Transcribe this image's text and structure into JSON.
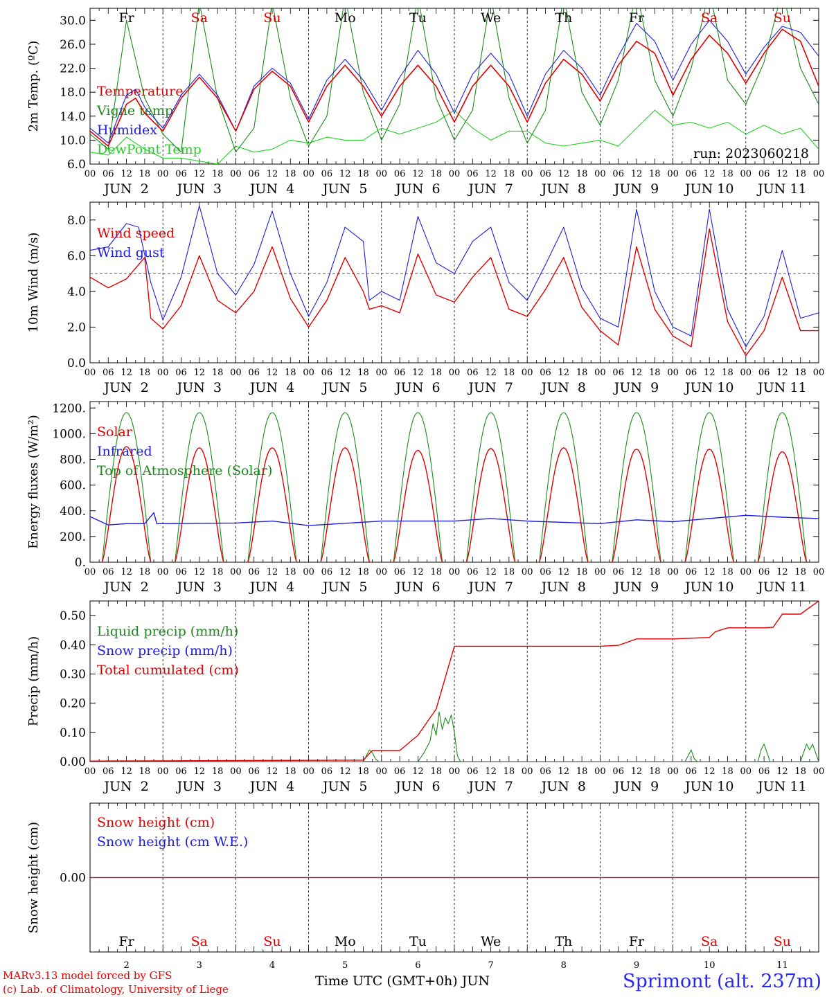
{
  "meta": {
    "run_label": "run: 2023060218",
    "credit_line1": "MARv3.13 model forced by GFS",
    "credit_line2": "(c) Lab. of Climatology, University of Liege",
    "x_axis_title": "Time UTC (GMT+0h) JUN",
    "station": "Sprimont (alt. 237m)"
  },
  "colors": {
    "red": "#e00000",
    "blue": "#1c1ce0",
    "green": "#1a8a1a",
    "lightgreen": "#20d020",
    "purple": "#7030a0"
  },
  "axis": {
    "hour_labels": [
      "00",
      "06",
      "12",
      "18"
    ],
    "day_labels": [
      {
        "text": "JUN  2"
      },
      {
        "text": "JUN  3"
      },
      {
        "text": "JUN  4"
      },
      {
        "text": "JUN  5"
      },
      {
        "text": "JUN  6"
      },
      {
        "text": "JUN  7"
      },
      {
        "text": "JUN  8"
      },
      {
        "text": "JUN  9"
      },
      {
        "text": "JUN 10"
      },
      {
        "text": "JUN 11"
      }
    ],
    "weekdays": [
      {
        "text": "Fr",
        "weekend": false
      },
      {
        "text": "Sa",
        "weekend": true
      },
      {
        "text": "Su",
        "weekend": true
      },
      {
        "text": "Mo",
        "weekend": false
      },
      {
        "text": "Tu",
        "weekend": false
      },
      {
        "text": "We",
        "weekend": false
      },
      {
        "text": "Th",
        "weekend": false
      },
      {
        "text": "Fr",
        "weekend": false
      },
      {
        "text": "Sa",
        "weekend": true
      },
      {
        "text": "Su",
        "weekend": true
      }
    ],
    "day_numbers": [
      "2",
      "3",
      "4",
      "5",
      "6",
      "7",
      "8",
      "9",
      "10",
      "11"
    ]
  },
  "chart_data": [
    {
      "type": "line",
      "id": "temp",
      "ylabel": "2m Temp. (ºC)",
      "ylim": [
        6,
        32
      ],
      "yticks": [
        "6.0",
        "10.0",
        "14.0",
        "18.0",
        "22.0",
        "26.0",
        "30.0"
      ],
      "legend": [
        "Temperature",
        "Vigne temp",
        "Humidex",
        "DewPoint Temp"
      ],
      "x_unit": "hours since JUN 2 00 UTC",
      "series": [
        {
          "name": "Temperature",
          "x": [
            0,
            6,
            12,
            15,
            18,
            24,
            30,
            36,
            42,
            48,
            54,
            60,
            66,
            72,
            78,
            84,
            90,
            96,
            102,
            108,
            114,
            120,
            126,
            132,
            138,
            144,
            150,
            156,
            162,
            168,
            174,
            180,
            186,
            192,
            198,
            204,
            210,
            216,
            222,
            228,
            234,
            240
          ],
          "values": [
            11.5,
            9.0,
            16.0,
            17.0,
            14.5,
            11.5,
            17.0,
            20.5,
            17.0,
            11.5,
            18.5,
            21.5,
            19.0,
            13.0,
            19.0,
            22.5,
            19.0,
            14.0,
            19.0,
            22.5,
            19.0,
            13.0,
            19.0,
            22.5,
            19.0,
            13.0,
            19.5,
            23.5,
            21.0,
            16.5,
            22.5,
            26.5,
            24.5,
            17.5,
            23.5,
            27.5,
            24.5,
            19.5,
            24.5,
            28.5,
            26.5,
            19.0
          ]
        },
        {
          "name": "Vigne temp",
          "x": [
            0,
            6,
            12,
            18,
            24,
            30,
            36,
            42,
            48,
            54,
            60,
            66,
            72,
            78,
            84,
            90,
            96,
            102,
            108,
            114,
            120,
            126,
            132,
            138,
            144,
            150,
            156,
            162,
            168,
            174,
            180,
            186,
            192,
            198,
            204,
            210,
            216,
            222,
            228,
            234,
            240
          ],
          "values": [
            11.0,
            8.5,
            30.0,
            17.0,
            11.0,
            8.0,
            33.0,
            17.0,
            8.0,
            12.0,
            33.0,
            17.0,
            9.0,
            14.0,
            34.0,
            18.0,
            10.0,
            16.0,
            34.0,
            17.0,
            10.0,
            15.0,
            34.0,
            17.0,
            9.5,
            15.0,
            34.0,
            18.0,
            12.5,
            20.0,
            35.0,
            20.0,
            14.0,
            22.0,
            35.0,
            20.0,
            16.0,
            23.0,
            35.0,
            22.0,
            16.0
          ]
        },
        {
          "name": "Humidex",
          "x": [
            0,
            6,
            12,
            15,
            18,
            24,
            30,
            36,
            42,
            48,
            54,
            60,
            66,
            72,
            78,
            84,
            90,
            96,
            102,
            108,
            114,
            120,
            126,
            132,
            138,
            144,
            150,
            156,
            162,
            168,
            174,
            180,
            186,
            192,
            198,
            204,
            210,
            216,
            222,
            228,
            234,
            240
          ],
          "values": [
            12.0,
            9.5,
            17.5,
            18.5,
            15.5,
            12.0,
            17.5,
            21.0,
            17.5,
            11.5,
            19.0,
            22.0,
            19.5,
            13.5,
            20.0,
            23.5,
            20.0,
            15.0,
            20.5,
            25.0,
            21.0,
            14.5,
            21.0,
            24.5,
            21.0,
            14.0,
            21.0,
            25.0,
            22.0,
            17.5,
            24.0,
            29.5,
            26.5,
            20.0,
            26.0,
            30.0,
            26.5,
            21.0,
            25.5,
            29.0,
            28.0,
            24.0
          ]
        },
        {
          "name": "DewPoint Temp",
          "x": [
            0,
            6,
            12,
            18,
            24,
            30,
            36,
            42,
            48,
            54,
            60,
            66,
            72,
            78,
            84,
            90,
            96,
            102,
            108,
            114,
            120,
            126,
            132,
            138,
            144,
            150,
            156,
            162,
            168,
            174,
            180,
            186,
            192,
            198,
            204,
            210,
            216,
            222,
            228,
            234,
            240
          ],
          "values": [
            8.0,
            7.5,
            10.5,
            8.5,
            7.0,
            7.0,
            6.5,
            6.0,
            9.0,
            8.0,
            8.5,
            10.0,
            9.5,
            10.5,
            10.0,
            10.0,
            12.0,
            11.0,
            12.0,
            13.0,
            15.0,
            12.0,
            10.0,
            11.5,
            11.5,
            9.5,
            9.0,
            9.5,
            10.0,
            9.0,
            12.0,
            15.0,
            12.5,
            13.0,
            12.0,
            13.0,
            11.0,
            12.5,
            11.0,
            12.0,
            8.5
          ]
        }
      ]
    },
    {
      "type": "line",
      "id": "wind",
      "ylabel": "10m Wind (m/s)",
      "ylim": [
        0,
        9
      ],
      "yticks": [
        "0.0",
        "2.0",
        "4.0",
        "6.0",
        "8.0"
      ],
      "reference_line": 5,
      "legend": [
        "Wind speed",
        "Wind gust"
      ],
      "x_unit": "hours since JUN 2 00 UTC",
      "series": [
        {
          "name": "Wind speed",
          "x": [
            0,
            6,
            12,
            18,
            20,
            24,
            30,
            36,
            42,
            48,
            54,
            60,
            66,
            72,
            78,
            84,
            90,
            92,
            96,
            102,
            108,
            114,
            120,
            126,
            132,
            138,
            144,
            150,
            156,
            162,
            168,
            174,
            180,
            186,
            192,
            198,
            204,
            210,
            216,
            222,
            228,
            234,
            240
          ],
          "values": [
            4.8,
            4.2,
            4.7,
            5.9,
            2.5,
            1.9,
            3.2,
            6.0,
            3.5,
            2.8,
            4.0,
            6.5,
            3.6,
            2.0,
            3.5,
            5.9,
            4.0,
            3.0,
            3.2,
            2.8,
            6.1,
            3.8,
            3.4,
            4.8,
            5.9,
            3.0,
            2.6,
            4.1,
            5.9,
            3.1,
            1.8,
            1.0,
            6.5,
            3.0,
            1.5,
            0.9,
            7.5,
            2.3,
            0.4,
            1.8,
            4.8,
            1.8,
            1.8
          ]
        },
        {
          "name": "Wind gust",
          "x": [
            0,
            6,
            12,
            16,
            20,
            24,
            30,
            36,
            42,
            48,
            54,
            60,
            66,
            72,
            78,
            84,
            90,
            92,
            96,
            102,
            108,
            114,
            120,
            126,
            132,
            138,
            144,
            150,
            156,
            162,
            168,
            174,
            180,
            186,
            192,
            198,
            204,
            210,
            216,
            222,
            228,
            234,
            240
          ],
          "values": [
            6.3,
            6.5,
            7.8,
            7.6,
            4.5,
            2.4,
            4.8,
            8.8,
            5.0,
            3.8,
            5.5,
            8.5,
            5.0,
            2.6,
            4.5,
            7.6,
            6.8,
            3.5,
            4.0,
            3.5,
            8.2,
            5.6,
            5.0,
            6.8,
            7.6,
            4.5,
            3.5,
            5.5,
            7.6,
            4.2,
            2.5,
            2.0,
            8.6,
            4.0,
            2.0,
            1.5,
            8.6,
            3.0,
            0.9,
            2.6,
            6.3,
            2.5,
            2.8
          ]
        }
      ]
    },
    {
      "type": "line",
      "id": "energy",
      "ylabel": "Energy fluxes (W/m²)",
      "ylim": [
        0,
        1250
      ],
      "yticks": [
        "0.",
        "200.",
        "400.",
        "600.",
        "800.",
        "1000.",
        "1200."
      ],
      "legend": [
        "Solar",
        "Infrared",
        "Top of Atmosphere (Solar)"
      ],
      "daily_peak_toa": 1165,
      "daily_peak_solar": [
        900,
        890,
        890,
        890,
        870,
        885,
        890,
        880,
        880,
        860
      ],
      "daylight_hours_utc": [
        4,
        20
      ],
      "x_unit": "hours since JUN 2 00 UTC",
      "series": [
        {
          "name": "Infrared",
          "x": [
            0,
            6,
            12,
            18,
            21,
            22,
            24,
            48,
            60,
            72,
            96,
            120,
            132,
            144,
            168,
            180,
            192,
            216,
            228,
            240
          ],
          "values": [
            355,
            290,
            300,
            300,
            385,
            300,
            300,
            305,
            320,
            285,
            320,
            320,
            340,
            320,
            300,
            330,
            315,
            365,
            350,
            340
          ]
        }
      ]
    },
    {
      "type": "line",
      "id": "precip",
      "ylabel": "Precip (mm/h)",
      "ylim": [
        0,
        0.55
      ],
      "yticks": [
        "0.00",
        "0.10",
        "0.20",
        "0.30",
        "0.40",
        "0.50"
      ],
      "legend": [
        "Liquid precip (mm/h)",
        "Snow precip (mm/h)",
        "Total cumulated (cm)"
      ],
      "x_unit": "hours since JUN 2 00 UTC",
      "series": [
        {
          "name": "Total cumulated (cm)",
          "x": [
            0,
            90,
            93,
            102,
            108,
            114,
            120,
            168,
            174,
            180,
            192,
            204,
            206,
            210,
            222,
            225,
            228,
            234,
            240
          ],
          "values": [
            0.002,
            0.005,
            0.038,
            0.038,
            0.09,
            0.18,
            0.395,
            0.395,
            0.398,
            0.42,
            0.42,
            0.425,
            0.445,
            0.458,
            0.458,
            0.46,
            0.505,
            0.505,
            0.55
          ]
        },
        {
          "name": "Liquid precip (mm/h)",
          "x": [
            0,
            90,
            91,
            92,
            93,
            94,
            95,
            108,
            110,
            112,
            113,
            114,
            115,
            116,
            117,
            118,
            119,
            120,
            121,
            122,
            196,
            197,
            198,
            199,
            200,
            220,
            221,
            222,
            223,
            224,
            234,
            235,
            236,
            237,
            238,
            239,
            240
          ],
          "values": [
            0,
            0,
            0.02,
            0.04,
            0.03,
            0.01,
            0,
            0,
            0.03,
            0.07,
            0.13,
            0.09,
            0.17,
            0.11,
            0.15,
            0.13,
            0.16,
            0.1,
            0.02,
            0,
            0,
            0.02,
            0.04,
            0.01,
            0,
            0,
            0.04,
            0.06,
            0.03,
            0,
            0,
            0.03,
            0.06,
            0.04,
            0.06,
            0.03,
            0
          ]
        },
        {
          "name": "Snow precip (mm/h)",
          "x": [
            0,
            240
          ],
          "values": [
            0,
            0
          ]
        }
      ]
    },
    {
      "type": "line",
      "id": "snow",
      "ylabel": "Snow height (cm)",
      "yticks": [
        "0.00"
      ],
      "legend": [
        "Snow height (cm)",
        "Snow height (cm W.E.)"
      ],
      "x_unit": "hours since JUN 2 00 UTC",
      "series": [
        {
          "name": "Snow height (cm)",
          "x": [
            0,
            240
          ],
          "values": [
            0,
            0
          ]
        },
        {
          "name": "Snow height (cm W.E.)",
          "x": [
            0,
            240
          ],
          "values": [
            0,
            0
          ]
        }
      ]
    }
  ]
}
